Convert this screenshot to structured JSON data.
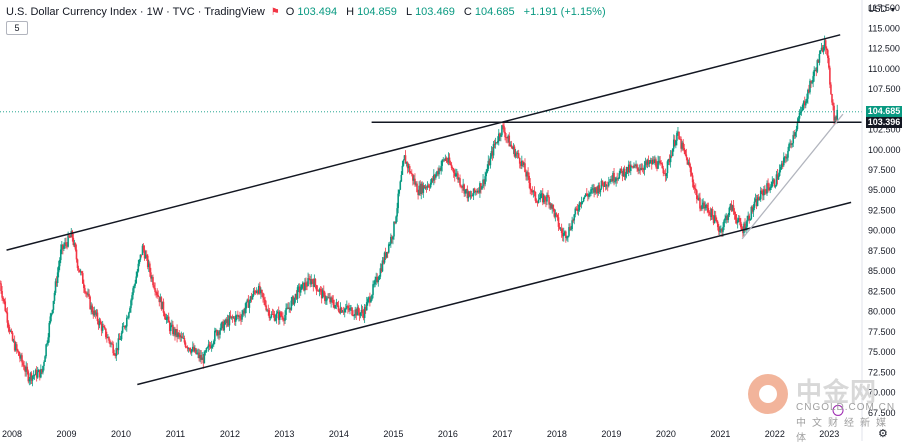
{
  "header": {
    "title": "U.S. Dollar Currency Index · 1W · TVC · TradingView",
    "ohlc": {
      "open_label": "O",
      "open": "103.494",
      "high_label": "H",
      "high": "104.859",
      "low_label": "L",
      "low": "103.469",
      "close_label": "C",
      "close": "104.685",
      "change": "+1.191 (+1.15%)"
    },
    "interval_badge": "5"
  },
  "currency_label": "USD",
  "price_labels": {
    "current": "104.685",
    "line": "103.396"
  },
  "watermark": {
    "brand": "中金网",
    "url": "CNGOLD.COM.CN",
    "subtitle": "中文财经新媒体"
  },
  "colors": {
    "up": "#089981",
    "down": "#f23645",
    "current_label_bg": "#089981",
    "line_label_bg": "#131722",
    "trendline": "#131722",
    "support_line": "#b2b5be"
  },
  "chart_data": {
    "type": "candlestick",
    "title": "U.S. Dollar Currency Index · 1W · TVC · TradingView",
    "x_ticks": [
      "2008",
      "2009",
      "2010",
      "2011",
      "2012",
      "2013",
      "2014",
      "2015",
      "2016",
      "2017",
      "2018",
      "2019",
      "2020",
      "2021",
      "2022",
      "2023"
    ],
    "y_ticks": [
      117.5,
      115.0,
      112.5,
      110.0,
      107.5,
      105.0,
      102.5,
      100.0,
      97.5,
      95.0,
      92.5,
      90.0,
      87.5,
      85.0,
      82.5,
      80.0,
      77.5,
      75.0,
      72.5,
      70.0,
      67.5
    ],
    "y_tick_labels": [
      "117.500",
      "115.000",
      "112.500",
      "110.000",
      "107.500",
      "105.000",
      "102.500",
      "100.000",
      "97.500",
      "95.000",
      "92.500",
      "90.000",
      "87.500",
      "85.000",
      "82.500",
      "80.000",
      "77.500",
      "75.000",
      "72.500",
      "70.000",
      "67.500"
    ],
    "ylim": [
      66.0,
      118.5
    ],
    "xlim": [
      2007.78,
      2023.6
    ],
    "price_path": [
      [
        2007.78,
        83.5
      ],
      [
        2008.0,
        76.5
      ],
      [
        2008.3,
        72.0
      ],
      [
        2008.55,
        72.5
      ],
      [
        2008.7,
        79.0
      ],
      [
        2008.9,
        87.5
      ],
      [
        2009.1,
        89.5
      ],
      [
        2009.2,
        86.0
      ],
      [
        2009.45,
        80.5
      ],
      [
        2009.9,
        75.0
      ],
      [
        2010.1,
        79.0
      ],
      [
        2010.4,
        88.0
      ],
      [
        2010.55,
        84.5
      ],
      [
        2010.9,
        78.0
      ],
      [
        2011.2,
        76.0
      ],
      [
        2011.5,
        74.0
      ],
      [
        2011.75,
        77.5
      ],
      [
        2012.0,
        79.0
      ],
      [
        2012.2,
        79.5
      ],
      [
        2012.5,
        83.0
      ],
      [
        2012.75,
        79.5
      ],
      [
        2013.0,
        79.5
      ],
      [
        2013.25,
        82.5
      ],
      [
        2013.5,
        84.0
      ],
      [
        2013.7,
        82.0
      ],
      [
        2014.0,
        80.5
      ],
      [
        2014.45,
        79.8
      ],
      [
        2014.7,
        84.0
      ],
      [
        2015.0,
        90.0
      ],
      [
        2015.2,
        99.0
      ],
      [
        2015.45,
        95.0
      ],
      [
        2015.7,
        96.0
      ],
      [
        2015.95,
        99.0
      ],
      [
        2016.15,
        97.0
      ],
      [
        2016.4,
        94.0
      ],
      [
        2016.65,
        96.0
      ],
      [
        2016.85,
        100.5
      ],
      [
        2017.0,
        102.8
      ],
      [
        2017.15,
        100.5
      ],
      [
        2017.35,
        98.5
      ],
      [
        2017.6,
        94.0
      ],
      [
        2017.85,
        94.0
      ],
      [
        2018.1,
        89.5
      ],
      [
        2018.2,
        89.8
      ],
      [
        2018.45,
        94.0
      ],
      [
        2018.7,
        95.0
      ],
      [
        2019.0,
        96.5
      ],
      [
        2019.3,
        97.5
      ],
      [
        2019.6,
        98.0
      ],
      [
        2019.8,
        98.5
      ],
      [
        2020.0,
        97.3
      ],
      [
        2020.2,
        102.0
      ],
      [
        2020.4,
        98.5
      ],
      [
        2020.6,
        93.5
      ],
      [
        2020.8,
        92.5
      ],
      [
        2021.0,
        90.0
      ],
      [
        2021.2,
        93.0
      ],
      [
        2021.4,
        90.0
      ],
      [
        2021.6,
        92.8
      ],
      [
        2021.8,
        95.0
      ],
      [
        2022.0,
        96.0
      ],
      [
        2022.2,
        99.0
      ],
      [
        2022.45,
        104.0
      ],
      [
        2022.65,
        108.0
      ],
      [
        2022.75,
        110.0
      ],
      [
        2022.87,
        112.5
      ],
      [
        2022.92,
        114.0
      ],
      [
        2023.0,
        109.0
      ],
      [
        2023.1,
        103.5
      ],
      [
        2023.16,
        104.6
      ]
    ],
    "last_close": 104.685,
    "horizontal_level": 103.396,
    "trendlines": [
      {
        "name": "channel-top",
        "from": [
          2007.9,
          87.6
        ],
        "to": [
          2023.2,
          114.2
        ]
      },
      {
        "name": "channel-bottom",
        "from": [
          2010.3,
          71.0
        ],
        "to": [
          2023.4,
          93.5
        ]
      },
      {
        "name": "support",
        "from": [
          2021.4,
          89.0
        ],
        "to": [
          2023.25,
          104.4
        ]
      }
    ]
  }
}
